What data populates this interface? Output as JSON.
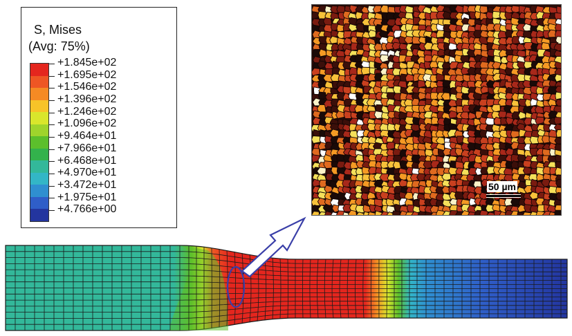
{
  "legend": {
    "title": "S, Mises",
    "subtitle": "(Avg: 75%)",
    "levels": [
      "+1.845e+02",
      "+1.695e+02",
      "+1.546e+02",
      "+1.396e+02",
      "+1.246e+02",
      "+1.096e+02",
      "+9.464e+01",
      "+7.966e+01",
      "+6.468e+01",
      "+4.970e+01",
      "+3.472e+01",
      "+1.975e+01",
      "+4.766e+00"
    ],
    "colors": [
      "#e4261e",
      "#ee5624",
      "#f58a24",
      "#f7c328",
      "#d9e62c",
      "#9fd42c",
      "#5cbf2c",
      "#33b24c",
      "#33b89a",
      "#33b6c6",
      "#2f8fd0",
      "#2f5ec8",
      "#23359f"
    ]
  },
  "micrograph": {
    "scale_label": "50 µm",
    "grain_colors": [
      "#1a0a08",
      "#3b0f0a",
      "#7a1b10",
      "#a8281a",
      "#c9401f",
      "#e06a1f",
      "#f59a24",
      "#f8c23a",
      "#f5e05a",
      "#fbf3c8",
      "#ffffff"
    ]
  },
  "mesh": {
    "field_colors": {
      "cyan": "#33b89a",
      "green": "#5cbf2c",
      "yellow": "#d9e62c",
      "orange": "#f58a24",
      "red": "#e4261e",
      "lightblue": "#2f8fd0",
      "blue": "#2f5ec8",
      "navy": "#23359f"
    },
    "line_color": "#1a1a1a"
  },
  "callout": {
    "color": "#3a3fa8"
  }
}
